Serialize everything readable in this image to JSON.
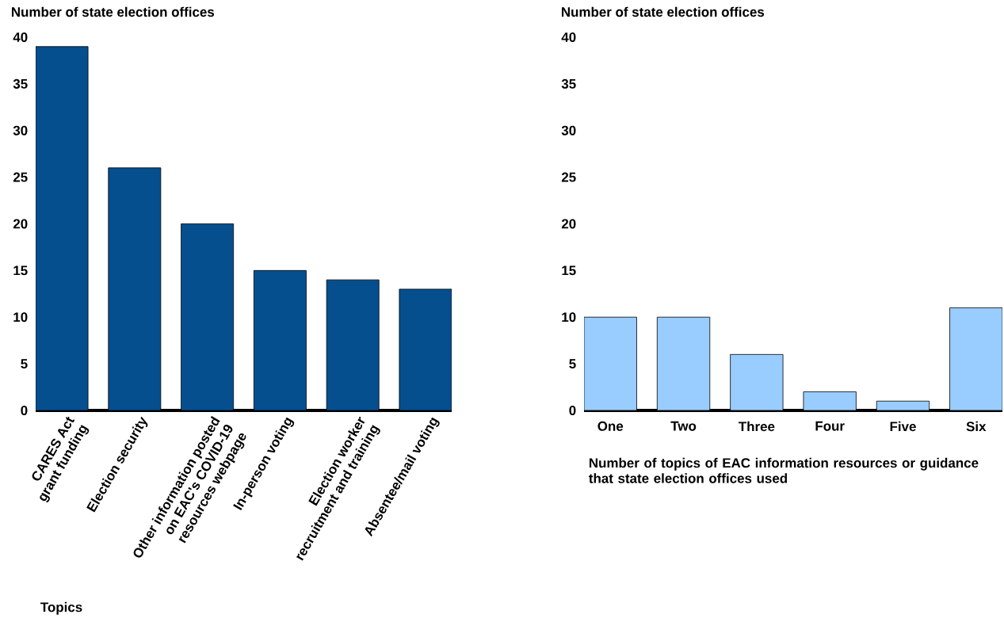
{
  "chart_data": [
    {
      "type": "bar",
      "ylabel": "Number of state election offices",
      "xlabel": "Topics",
      "categories": [
        "CARES Act grant funding",
        "Election security",
        "Other information posted on EAC's COVID-19 resources webpage",
        "In-person voting",
        "Election worker recruitment and training",
        "Absentee/mail voting"
      ],
      "values": [
        39,
        26,
        20,
        15,
        14,
        13
      ],
      "color": "#054f8f",
      "ylim": [
        0,
        40
      ],
      "yticks": [
        0,
        5,
        10,
        15,
        20,
        25,
        30,
        35,
        40
      ]
    },
    {
      "type": "bar",
      "ylabel": "Number of state election offices",
      "xlabel": "Number of topics of EAC information resources or guidance that state election offices used",
      "categories": [
        "One",
        "Two",
        "Three",
        "Four",
        "Five",
        "Six"
      ],
      "values": [
        10,
        10,
        6,
        2,
        1,
        11
      ],
      "color": "#99ccff",
      "ylim": [
        0,
        40
      ],
      "yticks": [
        0,
        5,
        10,
        15,
        20,
        25,
        30,
        35,
        40
      ]
    }
  ]
}
